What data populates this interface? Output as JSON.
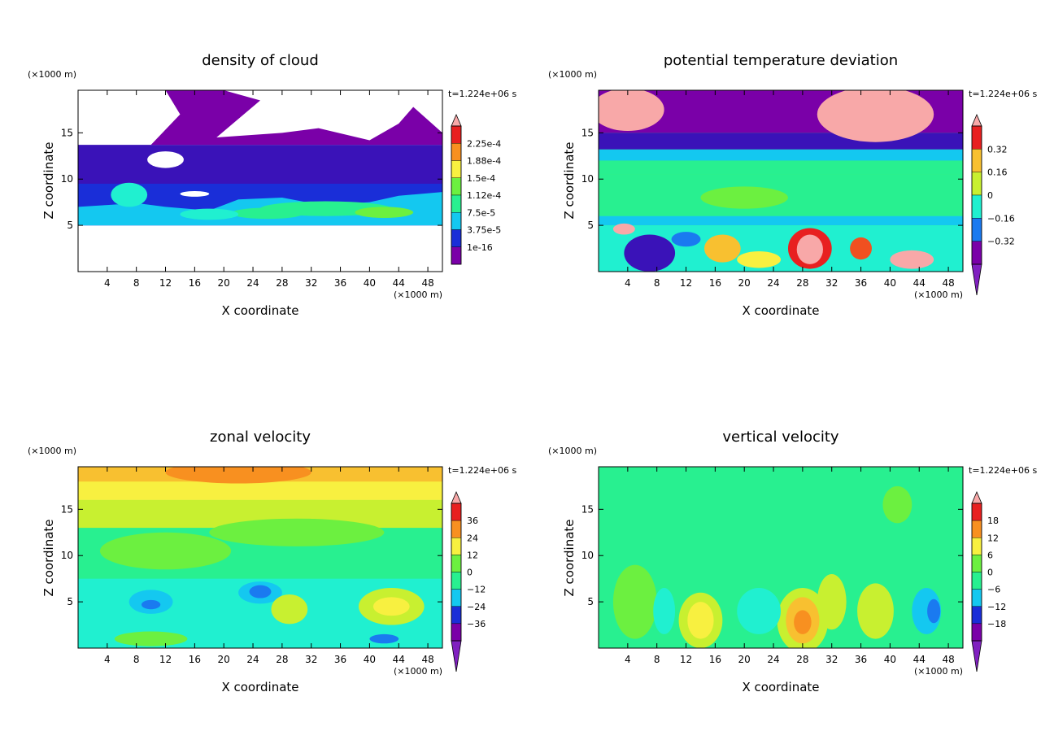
{
  "chart_data": [
    {
      "type": "heatmap",
      "title": "density of cloud",
      "xlabel": "X coordinate",
      "ylabel": "Z coordinate",
      "x_unit": "(×1000 m)",
      "y_unit": "(×1000 m)",
      "time_label": "t=1.224e+06 s",
      "xlim": [
        0,
        50
      ],
      "ylim": [
        0,
        19.6
      ],
      "x_ticks": [
        "4",
        "8",
        "12",
        "16",
        "20",
        "24",
        "28",
        "32",
        "36",
        "40",
        "44",
        "48"
      ],
      "y_ticks": [
        "5",
        "10",
        "15"
      ],
      "colorbar_labels": [
        "2.25e-4",
        "1.88e-4",
        "1.5e-4",
        "1.12e-4",
        "7.5e-5",
        "3.75e-5",
        "1e-16"
      ]
    },
    {
      "type": "heatmap",
      "title": "potential temperature deviation",
      "xlabel": "X coordinate",
      "ylabel": "Z coordinate",
      "x_unit": "(×1000 m)",
      "y_unit": "(×1000 m)",
      "time_label": "t=1.224e+06 s",
      "xlim": [
        0,
        50
      ],
      "ylim": [
        0,
        19.6
      ],
      "x_ticks": [
        "4",
        "8",
        "12",
        "16",
        "20",
        "24",
        "28",
        "32",
        "36",
        "40",
        "44",
        "48"
      ],
      "y_ticks": [
        "5",
        "10",
        "15"
      ],
      "colorbar_labels": [
        "0.32",
        "0.16",
        "0",
        "−0.16",
        "−0.32"
      ]
    },
    {
      "type": "heatmap",
      "title": "zonal velocity",
      "xlabel": "X coordinate",
      "ylabel": "Z coordinate",
      "x_unit": "(×1000 m)",
      "y_unit": "(×1000 m)",
      "time_label": "t=1.224e+06 s",
      "xlim": [
        0,
        50
      ],
      "ylim": [
        0,
        19.6
      ],
      "x_ticks": [
        "4",
        "8",
        "12",
        "16",
        "20",
        "24",
        "28",
        "32",
        "36",
        "40",
        "44",
        "48"
      ],
      "y_ticks": [
        "5",
        "10",
        "15"
      ],
      "colorbar_labels": [
        "36",
        "24",
        "12",
        "0",
        "−12",
        "−24",
        "−36"
      ]
    },
    {
      "type": "heatmap",
      "title": "vertical velocity",
      "xlabel": "X coordinate",
      "ylabel": "Z coordinate",
      "x_unit": "(×1000 m)",
      "y_unit": "(×1000 m)",
      "time_label": "t=1.224e+06 s",
      "xlim": [
        0,
        50
      ],
      "ylim": [
        0,
        19.6
      ],
      "x_ticks": [
        "4",
        "8",
        "12",
        "16",
        "20",
        "24",
        "28",
        "32",
        "36",
        "40",
        "44",
        "48"
      ],
      "y_ticks": [
        "5",
        "10",
        "15"
      ],
      "colorbar_labels": [
        "18",
        "12",
        "6",
        "0",
        "−6",
        "−12",
        "−18"
      ]
    }
  ],
  "colors": {
    "ncl_palette": [
      "#7a00a8",
      "#3a12b8",
      "#1a2ed8",
      "#1a7af0",
      "#14c8f0",
      "#20f0d0",
      "#28f090",
      "#6cf040",
      "#c8f030",
      "#f8f040",
      "#f8c030",
      "#f89020",
      "#f05020",
      "#e82020"
    ],
    "above_max": "#f8a8a8",
    "below_min": "#8020c0"
  }
}
